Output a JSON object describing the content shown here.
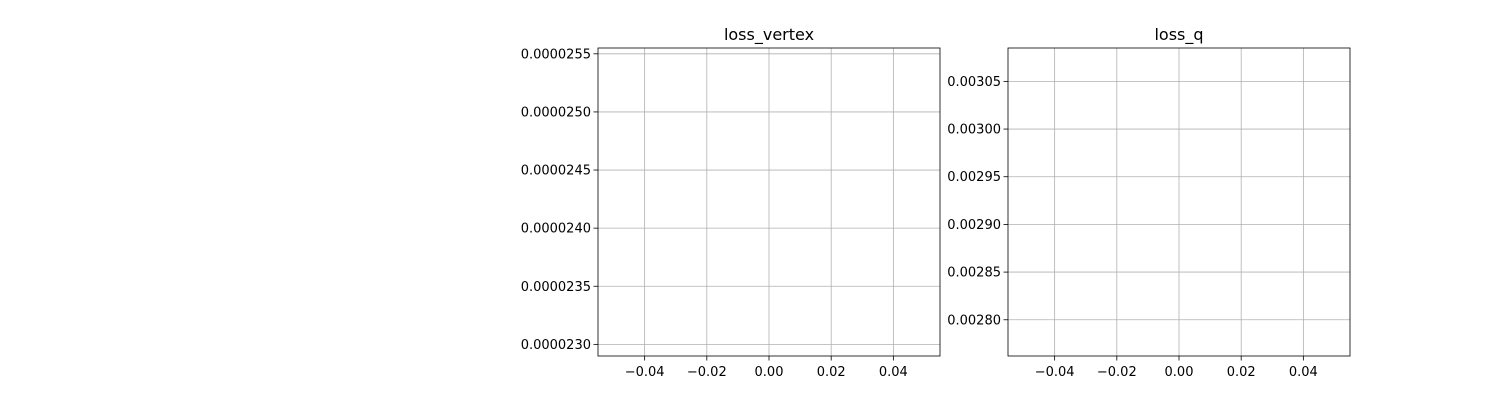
{
  "chart_data": [
    {
      "type": "line",
      "title": "loss_vertex",
      "xlabel": "",
      "ylabel": "",
      "xlim": [
        -0.055,
        0.055
      ],
      "ylim": [
        2.29e-05,
        2.555e-05
      ],
      "x_ticks": [
        -0.04,
        -0.02,
        0.0,
        0.02,
        0.04
      ],
      "x_tick_labels": [
        "−0.04",
        "−0.02",
        "0.00",
        "0.02",
        "0.04"
      ],
      "y_ticks": [
        2.3e-05,
        2.35e-05,
        2.4e-05,
        2.45e-05,
        2.5e-05,
        2.55e-05
      ],
      "y_tick_labels": [
        "0.0000230",
        "0.0000235",
        "0.0000240",
        "0.0000245",
        "0.0000250",
        "0.0000255"
      ],
      "grid": true,
      "series": []
    },
    {
      "type": "line",
      "title": "loss_q",
      "xlabel": "",
      "ylabel": "",
      "xlim": [
        -0.055,
        0.055
      ],
      "ylim": [
        0.002762,
        0.003085
      ],
      "x_ticks": [
        -0.04,
        -0.02,
        0.0,
        0.02,
        0.04
      ],
      "x_tick_labels": [
        "−0.04",
        "−0.02",
        "0.00",
        "0.02",
        "0.04"
      ],
      "y_ticks": [
        0.0028,
        0.00285,
        0.0029,
        0.00295,
        0.003,
        0.00305
      ],
      "y_tick_labels": [
        "0.00280",
        "0.00285",
        "0.00290",
        "0.00295",
        "0.00300",
        "0.00305"
      ],
      "grid": true,
      "series": []
    }
  ],
  "colors": {
    "grid": "#b0b0b0",
    "axes": "#000000",
    "background": "#ffffff"
  }
}
